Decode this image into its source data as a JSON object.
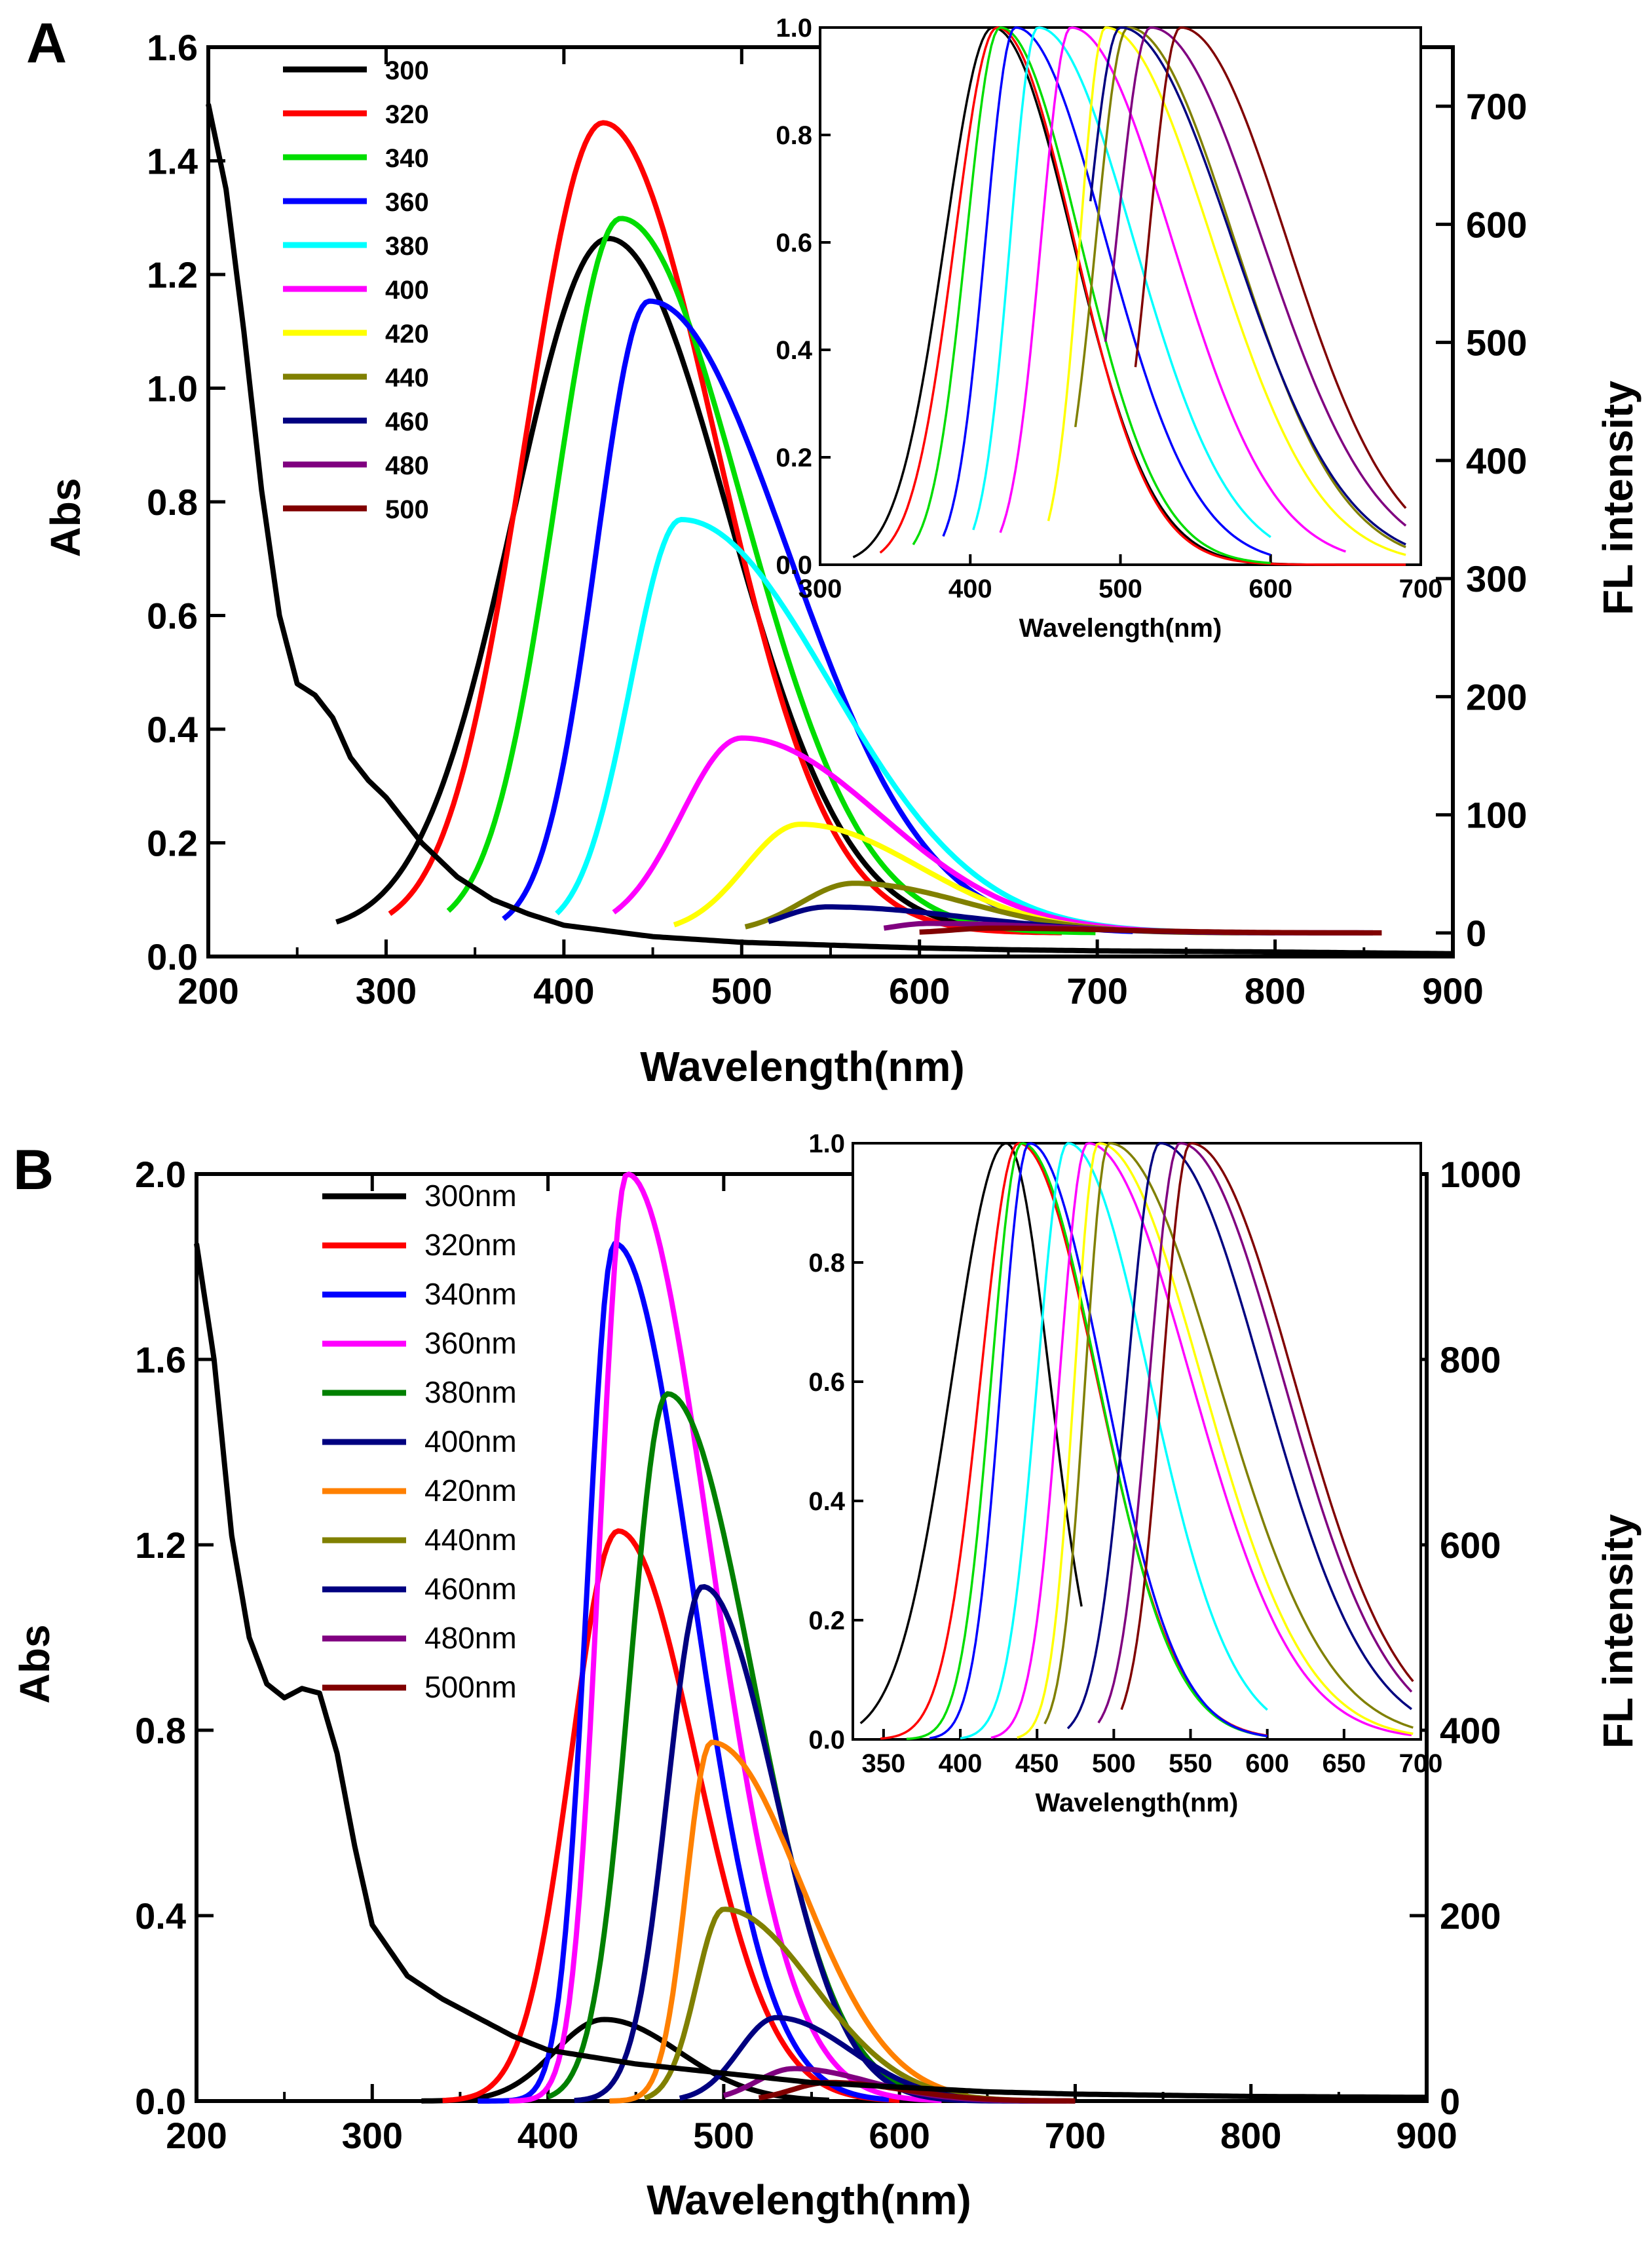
{
  "chart_data": [
    {
      "panel": "A",
      "type": "line",
      "title": "",
      "xlabel": "Wavelength(nm)",
      "ylabel_left": "Abs",
      "ylabel_right": "FL intensity",
      "xlim": [
        200,
        900
      ],
      "ylim_left": [
        0,
        1.6
      ],
      "ylim_right": [
        -20,
        750
      ],
      "x_ticks": [
        "200",
        "300",
        "400",
        "500",
        "600",
        "700",
        "800",
        "900"
      ],
      "y_left_ticks": [
        "0.0",
        "0.2",
        "0.4",
        "0.6",
        "0.8",
        "1.0",
        "1.2",
        "1.4",
        "1.6"
      ],
      "y_right_ticks": [
        "0",
        "100",
        "200",
        "300",
        "400",
        "500",
        "600",
        "700"
      ],
      "absorbance": {
        "name": "Abs",
        "color": "#000000",
        "x": [
          200,
          210,
          220,
          230,
          240,
          250,
          260,
          270,
          280,
          290,
          300,
          320,
          340,
          360,
          380,
          400,
          450,
          500,
          550,
          600,
          650,
          700,
          800,
          900
        ],
        "y": [
          1.5,
          1.35,
          1.1,
          0.82,
          0.6,
          0.48,
          0.46,
          0.42,
          0.35,
          0.31,
          0.28,
          0.2,
          0.14,
          0.1,
          0.075,
          0.055,
          0.035,
          0.025,
          0.02,
          0.015,
          0.012,
          0.01,
          0.008,
          0.005
        ]
      },
      "legend": [
        "300",
        "320",
        "340",
        "360",
        " 380",
        "400",
        "420",
        "440",
        "460",
        "480",
        "500"
      ],
      "series": [
        {
          "name": "300",
          "color": "#000000",
          "start": 272,
          "peak_x": 425,
          "peak_y": 588,
          "end": 680,
          "w1": 75,
          "w2": 95
        },
        {
          "name": "320",
          "color": "#ff0000",
          "start": 302,
          "peak_x": 422,
          "peak_y": 686,
          "end": 680,
          "w1": 62,
          "w2": 90
        },
        {
          "name": "340",
          "color": "#00dd00",
          "start": 335,
          "peak_x": 432,
          "peak_y": 605,
          "end": 700,
          "w1": 52,
          "w2": 96
        },
        {
          "name": "360",
          "color": "#0000ff",
          "start": 366,
          "peak_x": 448,
          "peak_y": 535,
          "end": 720,
          "w1": 42,
          "w2": 110
        },
        {
          "name": "380",
          "color": "#00ffff",
          "start": 396,
          "peak_x": 466,
          "peak_y": 350,
          "end": 760,
          "w1": 40,
          "w2": 118
        },
        {
          "name": "400",
          "color": "#ff00ff",
          "start": 428,
          "peak_x": 500,
          "peak_y": 165,
          "end": 780,
          "w1": 48,
          "w2": 110
        },
        {
          "name": "420",
          "color": "#ffff00",
          "start": 462,
          "peak_x": 533,
          "peak_y": 92,
          "end": 780,
          "w1": 44,
          "w2": 95
        },
        {
          "name": "440",
          "color": "#808000",
          "start": 502,
          "peak_x": 563,
          "peak_y": 42,
          "end": 800,
          "w1": 42,
          "w2": 90
        },
        {
          "name": "460",
          "color": "#000080",
          "start": 515,
          "peak_x": 548,
          "peak_y": 22,
          "end": 855,
          "w1": 36,
          "w2": 110
        },
        {
          "name": "480",
          "color": "#800080",
          "start": 580,
          "peak_x": 605,
          "peak_y": 8,
          "end": 850,
          "w1": 30,
          "w2": 100
        },
        {
          "name": "500",
          "color": "#800000",
          "start": 600,
          "peak_x": 640,
          "peak_y": 4,
          "end": 860,
          "w1": 30,
          "w2": 100
        }
      ],
      "inset": {
        "xlabel": "Wavelength(nm)",
        "xlim": [
          300,
          700
        ],
        "ylim": [
          0,
          1.0
        ],
        "x_ticks": [
          "300",
          "400",
          "500",
          "600",
          "700"
        ],
        "y_ticks": [
          "0.0",
          "0.2",
          "0.4",
          "0.6",
          "0.8",
          "1.0"
        ],
        "series": [
          {
            "name": "300",
            "color": "#000000",
            "start": 322,
            "peak": 415,
            "end": 690,
            "w1": 45,
            "w2": 75
          },
          {
            "name": "320",
            "color": "#ff0000",
            "start": 340,
            "peak": 418,
            "end": 690,
            "w1": 40,
            "w2": 72
          },
          {
            "name": "340",
            "color": "#00dd00",
            "start": 362,
            "peak": 420,
            "end": 600,
            "w1": 32,
            "w2": 75
          },
          {
            "name": "360",
            "color": "#0000ff",
            "start": 382,
            "peak": 430,
            "end": 600,
            "w1": 28,
            "w2": 85
          },
          {
            "name": "380",
            "color": "#00ffff",
            "start": 402,
            "peak": 445,
            "end": 600,
            "w1": 26,
            "w2": 90
          },
          {
            "name": "400",
            "color": "#ff00ff",
            "start": 420,
            "peak": 467,
            "end": 650,
            "w1": 28,
            "w2": 95
          },
          {
            "name": "420",
            "color": "#ffff00",
            "start": 452,
            "peak": 490,
            "end": 690,
            "w1": 24,
            "w2": 100
          },
          {
            "name": "440",
            "color": "#808000",
            "start": 470,
            "peak": 505,
            "end": 690,
            "w1": 30,
            "w2": 100
          },
          {
            "name": "460",
            "color": "#000080",
            "start": 480,
            "peak": 500,
            "end": 690,
            "w1": 32,
            "w2": 105
          },
          {
            "name": "480",
            "color": "#800080",
            "start": 490,
            "peak": 520,
            "end": 690,
            "w1": 32,
            "w2": 105
          },
          {
            "name": "500",
            "color": "#800000",
            "start": 510,
            "peak": 540,
            "end": 690,
            "w1": 30,
            "w2": 100
          }
        ]
      }
    },
    {
      "panel": "B",
      "type": "line",
      "title": "",
      "xlabel": "Wavelength(nm)",
      "ylabel_left": "Abs",
      "ylabel_right": "FL intensity",
      "xlim": [
        200,
        900
      ],
      "ylim_left": [
        0,
        2.0
      ],
      "ylim_right": [
        0,
        1000
      ],
      "x_ticks": [
        "200",
        "300",
        "400",
        "500",
        "600",
        "700",
        "800",
        "900"
      ],
      "y_left_ticks": [
        "0.0",
        "0.4",
        "0.8",
        "1.2",
        "1.6",
        "2.0"
      ],
      "y_right_ticks": [
        "0",
        "200",
        "400",
        "600",
        "800",
        "1000"
      ],
      "absorbance": {
        "name": "Abs",
        "color": "#000000",
        "x": [
          200,
          210,
          220,
          230,
          240,
          250,
          260,
          270,
          280,
          290,
          300,
          320,
          340,
          360,
          380,
          400,
          450,
          500,
          550,
          600,
          650,
          700,
          800,
          900
        ],
        "y": [
          1.85,
          1.6,
          1.22,
          1.0,
          0.9,
          0.87,
          0.89,
          0.88,
          0.75,
          0.55,
          0.38,
          0.27,
          0.22,
          0.18,
          0.14,
          0.11,
          0.08,
          0.06,
          0.04,
          0.03,
          0.02,
          0.015,
          0.01,
          0.008
        ]
      },
      "legend": [
        "300nm",
        "320nm",
        "340nm",
        "360nm",
        "380nm",
        "400nm",
        "420nm",
        "440nm",
        "460nm",
        "480nm",
        "500nm"
      ],
      "series": [
        {
          "name": "300nm",
          "color": "#000000",
          "start": 328,
          "peak_x": 432,
          "peak_y": 88,
          "end": 560,
          "w1": 40,
          "w2": 60
        },
        {
          "name": "320nm",
          "color": "#ff0000",
          "start": 340,
          "peak_x": 440,
          "peak_y": 615,
          "end": 600,
          "w1": 38,
          "w2": 62
        },
        {
          "name": "340nm",
          "color": "#0000ff",
          "start": 360,
          "peak_x": 438,
          "peak_y": 925,
          "end": 595,
          "w1": 22,
          "w2": 62
        },
        {
          "name": "360nm",
          "color": "#ff00ff",
          "start": 378,
          "peak_x": 445,
          "peak_y": 1000,
          "end": 625,
          "w1": 22,
          "w2": 66
        },
        {
          "name": "380nm",
          "color": "#008000",
          "start": 400,
          "peak_x": 468,
          "peak_y": 763,
          "end": 630,
          "w1": 30,
          "w2": 68
        },
        {
          "name": "400nm",
          "color": "#000080",
          "start": 415,
          "peak_x": 488,
          "peak_y": 555,
          "end": 695,
          "w1": 28,
          "w2": 58
        },
        {
          "name": "420nm",
          "color": "#ff8000",
          "start": 435,
          "peak_x": 493,
          "peak_y": 387,
          "end": 640,
          "w1": 20,
          "w2": 72
        },
        {
          "name": "440nm",
          "color": "#808000",
          "start": 455,
          "peak_x": 500,
          "peak_y": 207,
          "end": 700,
          "w1": 22,
          "w2": 72
        },
        {
          "name": "460nm",
          "color": "#000080",
          "start": 475,
          "peak_x": 530,
          "peak_y": 90,
          "end": 695,
          "w1": 30,
          "w2": 60
        },
        {
          "name": "480nm",
          "color": "#800080",
          "start": 500,
          "peak_x": 540,
          "peak_y": 35,
          "end": 700,
          "w1": 30,
          "w2": 60
        },
        {
          "name": "500nm",
          "color": "#800000",
          "start": 520,
          "peak_x": 560,
          "peak_y": 20,
          "end": 700,
          "w1": 30,
          "w2": 60
        }
      ],
      "inset": {
        "xlabel": "Wavelength(nm)",
        "xlim": [
          330,
          700
        ],
        "ylim": [
          0,
          1.0
        ],
        "x_ticks": [
          "350",
          "400",
          "450",
          "500",
          "550",
          "600",
          "650",
          "700"
        ],
        "y_ticks": [
          "0.0",
          "0.2",
          "0.4",
          "0.6",
          "0.8",
          "1.0"
        ],
        "series": [
          {
            "name": "300nm",
            "color": "#000000",
            "start": 335,
            "peak": 430,
            "end": 480,
            "w1": 50,
            "w2": 40
          },
          {
            "name": "320nm",
            "color": "#ff0000",
            "start": 348,
            "peak": 438,
            "end": 600,
            "w1": 35,
            "w2": 72
          },
          {
            "name": "340nm",
            "color": "#00dd00",
            "start": 365,
            "peak": 440,
            "end": 600,
            "w1": 28,
            "w2": 70
          },
          {
            "name": "360nm",
            "color": "#0000ff",
            "start": 380,
            "peak": 445,
            "end": 600,
            "w1": 26,
            "w2": 68
          },
          {
            "name": "380nm",
            "color": "#00ffff",
            "start": 400,
            "peak": 470,
            "end": 600,
            "w1": 28,
            "w2": 75
          },
          {
            "name": "400nm",
            "color": "#ff00ff",
            "start": 420,
            "peak": 483,
            "end": 695,
            "w1": 26,
            "w2": 95
          },
          {
            "name": "420nm",
            "color": "#ffff00",
            "start": 437,
            "peak": 490,
            "end": 695,
            "w1": 22,
            "w2": 95
          },
          {
            "name": "440nm",
            "color": "#808000",
            "start": 455,
            "peak": 497,
            "end": 695,
            "w1": 22,
            "w2": 100
          },
          {
            "name": "460nm",
            "color": "#000080",
            "start": 470,
            "peak": 530,
            "end": 695,
            "w1": 30,
            "w2": 95
          },
          {
            "name": "480nm",
            "color": "#800080",
            "start": 490,
            "peak": 543,
            "end": 695,
            "w1": 28,
            "w2": 95
          },
          {
            "name": "500nm",
            "color": "#800000",
            "start": 505,
            "peak": 550,
            "end": 695,
            "w1": 26,
            "w2": 95
          }
        ]
      }
    }
  ]
}
